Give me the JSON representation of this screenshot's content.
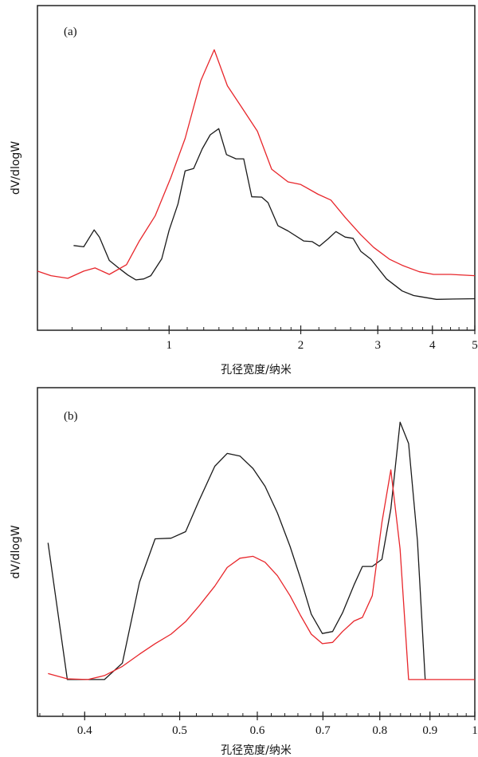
{
  "chart_data": [
    {
      "type": "line",
      "panel_label": "(a)",
      "xlabel": "孔径宽度/纳米",
      "ylabel": "dV/dlogW",
      "xscale": "log",
      "xlim": [
        0.5,
        5
      ],
      "ylim": [
        0,
        100
      ],
      "xticks": [
        1,
        2,
        3,
        4,
        5
      ],
      "xtick_labels": [
        "1",
        "2",
        "3",
        "4",
        "5"
      ],
      "yticks_shown": false,
      "grid": false,
      "series": [
        {
          "color": "#1a1a1a",
          "x": [
            0.605,
            0.638,
            0.674,
            0.693,
            0.73,
            0.77,
            0.805,
            0.84,
            0.875,
            0.908,
            0.962,
            1.0,
            1.048,
            1.088,
            1.138,
            1.191,
            1.242,
            1.299,
            1.353,
            1.422,
            1.481,
            1.545,
            1.628,
            1.683,
            1.774,
            1.87,
            2.031,
            2.124,
            2.206,
            2.307,
            2.407,
            2.526,
            2.634,
            2.744,
            2.892,
            3.141,
            3.412,
            3.624,
            3.734,
            4.086,
            4.474,
            5.0
          ],
          "y": [
            26.1,
            25.7,
            30.9,
            28.7,
            21.5,
            19.0,
            17.0,
            15.5,
            15.8,
            16.8,
            22.0,
            30.8,
            38.9,
            49.1,
            49.8,
            55.9,
            60.2,
            62.1,
            54.1,
            52.8,
            52.8,
            41.1,
            41.0,
            39.3,
            32.2,
            30.6,
            27.5,
            27.3,
            25.9,
            28.1,
            30.4,
            28.7,
            28.3,
            24.3,
            21.9,
            15.8,
            12.1,
            10.7,
            10.4,
            9.5,
            9.6,
            9.7
          ]
        },
        {
          "color": "#e8262b",
          "x": [
            0.5,
            0.537,
            0.587,
            0.638,
            0.677,
            0.73,
            0.799,
            0.855,
            0.929,
            1.009,
            1.088,
            1.182,
            1.268,
            1.359,
            1.47,
            1.592,
            1.716,
            1.87,
            2.0,
            2.19,
            2.343,
            2.526,
            2.744,
            2.936,
            3.189,
            3.412,
            3.734,
            4.025,
            4.406,
            5.0
          ],
          "y": [
            18.2,
            16.8,
            16.0,
            18.2,
            19.2,
            17.2,
            20.2,
            27.5,
            35.2,
            47.0,
            59.1,
            76.9,
            86.4,
            75.3,
            68.4,
            61.3,
            49.6,
            45.7,
            44.9,
            41.9,
            40.1,
            34.8,
            29.4,
            25.5,
            21.9,
            20.0,
            18.0,
            17.2,
            17.2,
            16.8
          ]
        }
      ]
    },
    {
      "type": "line",
      "panel_label": "(b)",
      "xlabel": "孔径宽度/纳米",
      "ylabel": "dV/dlogW",
      "xscale": "log",
      "xlim": [
        0.358,
        1
      ],
      "ylim": [
        0,
        100
      ],
      "xticks": [
        0.4,
        0.5,
        0.6,
        0.7,
        0.8,
        0.9,
        1
      ],
      "xtick_labels": [
        "0.4",
        "0.5",
        "0.6",
        "0.7",
        "0.8",
        "0.9",
        "1"
      ],
      "yticks_shown": false,
      "grid": false,
      "series": [
        {
          "color": "#1a1a1a",
          "x": [
            0.367,
            0.384,
            0.419,
            0.437,
            0.455,
            0.472,
            0.49,
            0.507,
            0.523,
            0.543,
            0.559,
            0.576,
            0.594,
            0.611,
            0.629,
            0.648,
            0.664,
            0.681,
            0.699,
            0.716,
            0.733,
            0.753,
            0.768,
            0.786,
            0.804,
            0.821,
            0.839,
            0.856,
            0.874,
            0.89
          ],
          "y": [
            52.8,
            11.2,
            11.2,
            16.2,
            40.8,
            54.0,
            54.2,
            56.2,
            65.5,
            76.1,
            80.0,
            79.2,
            75.4,
            70.0,
            61.9,
            51.7,
            42.0,
            31.1,
            25.2,
            25.8,
            31.5,
            40.0,
            45.6,
            45.6,
            47.8,
            63.1,
            89.5,
            83.0,
            53.4,
            11.2
          ]
        },
        {
          "color": "#e8262b",
          "x": [
            0.367,
            0.384,
            0.403,
            0.419,
            0.437,
            0.455,
            0.472,
            0.49,
            0.507,
            0.523,
            0.543,
            0.559,
            0.576,
            0.594,
            0.611,
            0.629,
            0.648,
            0.664,
            0.681,
            0.699,
            0.716,
            0.733,
            0.753,
            0.768,
            0.786,
            0.804,
            0.821,
            0.839,
            0.856,
            1.0
          ],
          "y": [
            13.0,
            11.4,
            11.2,
            12.4,
            15.2,
            18.9,
            22.1,
            25.0,
            28.8,
            33.5,
            39.6,
            45.3,
            48.1,
            48.7,
            46.9,
            42.8,
            36.7,
            30.7,
            25.0,
            22.1,
            22.5,
            25.8,
            29.0,
            30.1,
            36.7,
            59.0,
            75.0,
            50.9,
            11.2,
            11.2
          ]
        }
      ]
    }
  ]
}
